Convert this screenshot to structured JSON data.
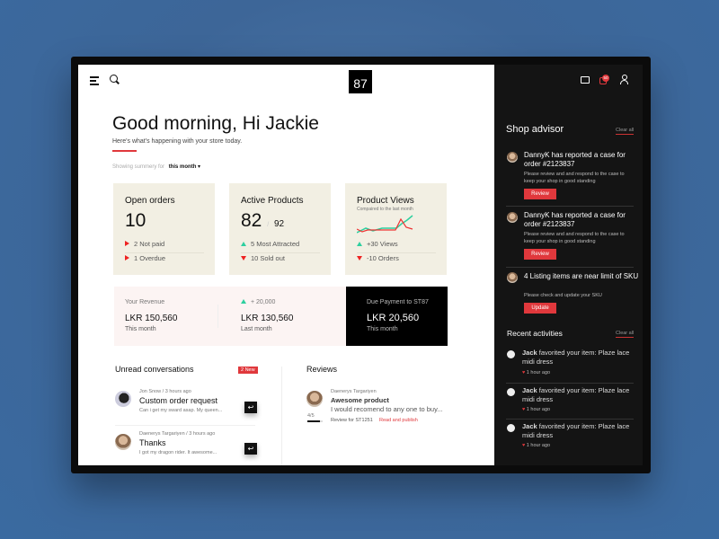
{
  "header": {
    "logo": "87",
    "notification_count": "50"
  },
  "greeting": {
    "title": "Good morning, Hi Jackie",
    "subtitle": "Here's what's happening with your store today.",
    "summary_label": "Showing summery for",
    "summary_period": "this month"
  },
  "cards": {
    "open_orders": {
      "title": "Open orders",
      "value": "10",
      "rows": [
        "2 Not paid",
        "1 Overdue"
      ]
    },
    "active_products": {
      "title": "Active Products",
      "value": "82",
      "total": "92",
      "rows": [
        "5 Most Attracted",
        "10 Sold out"
      ]
    },
    "product_views": {
      "title": "Product Views",
      "subtitle": "Compaired to the last month",
      "rows": [
        "+30 Views",
        "-10 Orders"
      ]
    }
  },
  "revenue": {
    "label": "Your Revenue",
    "value": "LKR 150,560",
    "period": "This month",
    "change": "+ 20,000",
    "last_value": "LKR 130,560",
    "last_period": "Last month",
    "due_label": "Due Payment to ST87",
    "due_value": "LKR 20,560",
    "due_period": "This month"
  },
  "conversations": {
    "title": "Unread conversations",
    "badge": "2 New",
    "items": [
      {
        "meta": "Jon Snow / 3 hours ago",
        "subject": "Custom order request",
        "preview": "Can i get my sward asap. My queen..."
      },
      {
        "meta": "Daenerys Targariyen / 3 hours ago",
        "subject": "Thanks",
        "preview": "I got my dragon rider. It awesome..."
      }
    ]
  },
  "reviews": {
    "title": "Reviews",
    "item": {
      "author": "Daenerys Targariyen",
      "title": "Awesome product",
      "text": "I would recomend to any one to buy...",
      "rating": "4/5",
      "rating_value": 0.8,
      "ref": "Review for ST1251",
      "action": "Read and publish"
    }
  },
  "advisor": {
    "title": "Shop advisor",
    "clear": "Clear all",
    "items": [
      {
        "title": "DannyK has reported a case for order #2123837",
        "text": "Please review and and respond to the case to keep your shop in good standing",
        "button": "Review"
      },
      {
        "title": "DannyK has reported a case for order #2123837",
        "text": "Please review and and respond to the case to keep your shop in good standing",
        "button": "Review"
      },
      {
        "title": "4 Listing items are near limit of SKU",
        "text": "Please check and update your SKU",
        "button": "Update"
      }
    ]
  },
  "activities": {
    "title": "Recent activities",
    "clear": "Clear all",
    "items": [
      {
        "user": "Jack",
        "text": "favorited your item: Plaze lace midi dress",
        "time": "1 hour ago"
      },
      {
        "user": "Jack",
        "text": "favorited your item: Plaze lace midi dress",
        "time": "1 hour ago"
      },
      {
        "user": "Jack",
        "text": "favorited your item: Plaze lace midi dress",
        "time": "1 hour ago"
      }
    ]
  },
  "colors": {
    "accent": "#e0383c",
    "positive": "#2ecf9f",
    "card_bg": "#f2efe3",
    "sidebar_bg": "#141414"
  }
}
